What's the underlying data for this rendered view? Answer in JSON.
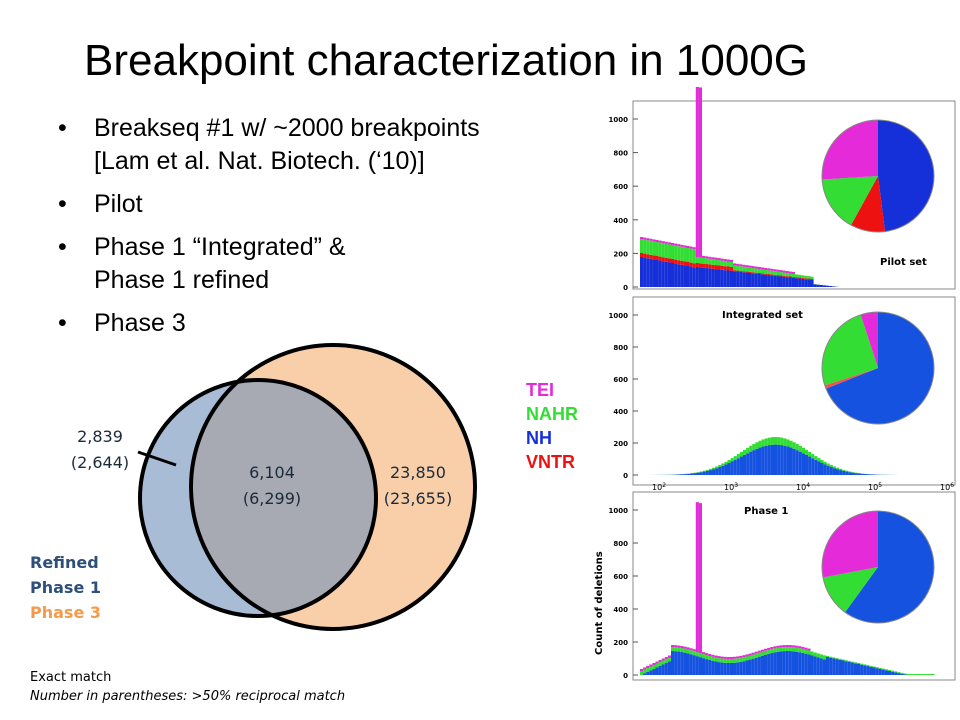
{
  "title": "Breakpoint characterization in 1000G",
  "bullets": [
    {
      "lines": [
        "Breakseq #1 w/ ~2000 breakpoints",
        "[Lam et al. Nat. Biotech. (‘10)]"
      ]
    },
    {
      "lines": [
        "Pilot"
      ]
    },
    {
      "lines": [
        "Phase 1 “Integrated” &",
        "Phase 1 refined"
      ]
    },
    {
      "lines": [
        "Phase 3"
      ]
    }
  ],
  "venn": {
    "left_only": {
      "exact": "2,839",
      "reciprocal": "(2,644)"
    },
    "overlap": {
      "exact": "6,104",
      "reciprocal": "(6,299)"
    },
    "right_only": {
      "exact": "23,850",
      "reciprocal": "(23,655)"
    },
    "colors": {
      "left": "#a8bcd6",
      "right": "#f9cfaa",
      "overlap": "#a7aab3"
    }
  },
  "category_legend": [
    {
      "label": "TEI",
      "color": "#e52ad9"
    },
    {
      "label": "NAHR",
      "color": "#33dd33"
    },
    {
      "label": "NH",
      "color": "#1530d8"
    },
    {
      "label": "VNTR",
      "color": "#ee1111"
    }
  ],
  "set_legend": [
    {
      "label": "Refined",
      "color": "#2e4f79"
    },
    {
      "label": "Phase 1",
      "color": "#2e4f79"
    },
    {
      "label": "Phase 3",
      "color": "#f39a4c"
    }
  ],
  "notes": {
    "exact": "Exact match",
    "reciprocal": "Number in parentheses: >50% reciprocal match"
  },
  "panels": {
    "pilot_label": "Pilot set",
    "integrated_label": "Integrated set",
    "phase1_label": "Phase 1",
    "y_axis_label": "Count of deletions",
    "y_ticks": [
      "0",
      "200",
      "400",
      "600",
      "800",
      "1000"
    ],
    "x_ticks": [
      "10",
      "10",
      "10",
      "10",
      "10"
    ],
    "x_exponents": [
      "2",
      "3",
      "4",
      "5",
      "6"
    ]
  },
  "pies": {
    "pilot": [
      {
        "cat": "NH",
        "share": 0.48,
        "color": "#1530d8"
      },
      {
        "cat": "VNTR",
        "share": 0.1,
        "color": "#ee1111"
      },
      {
        "cat": "NAHR",
        "share": 0.16,
        "color": "#33dd33"
      },
      {
        "cat": "TEI",
        "share": 0.26,
        "color": "#e52ad9"
      }
    ],
    "integrated": [
      {
        "cat": "NH",
        "share": 0.69,
        "color": "#1552e0"
      },
      {
        "cat": "VNTR",
        "share": 0.01,
        "color": "#ee5555"
      },
      {
        "cat": "NAHR",
        "share": 0.25,
        "color": "#33dd33"
      },
      {
        "cat": "TEI",
        "share": 0.05,
        "color": "#e52ad9"
      }
    ],
    "phase1": [
      {
        "cat": "NH",
        "share": 0.6,
        "color": "#1552e0"
      },
      {
        "cat": "NAHR",
        "share": 0.12,
        "color": "#33dd33"
      },
      {
        "cat": "TEI",
        "share": 0.28,
        "color": "#e52ad9"
      }
    ]
  }
}
